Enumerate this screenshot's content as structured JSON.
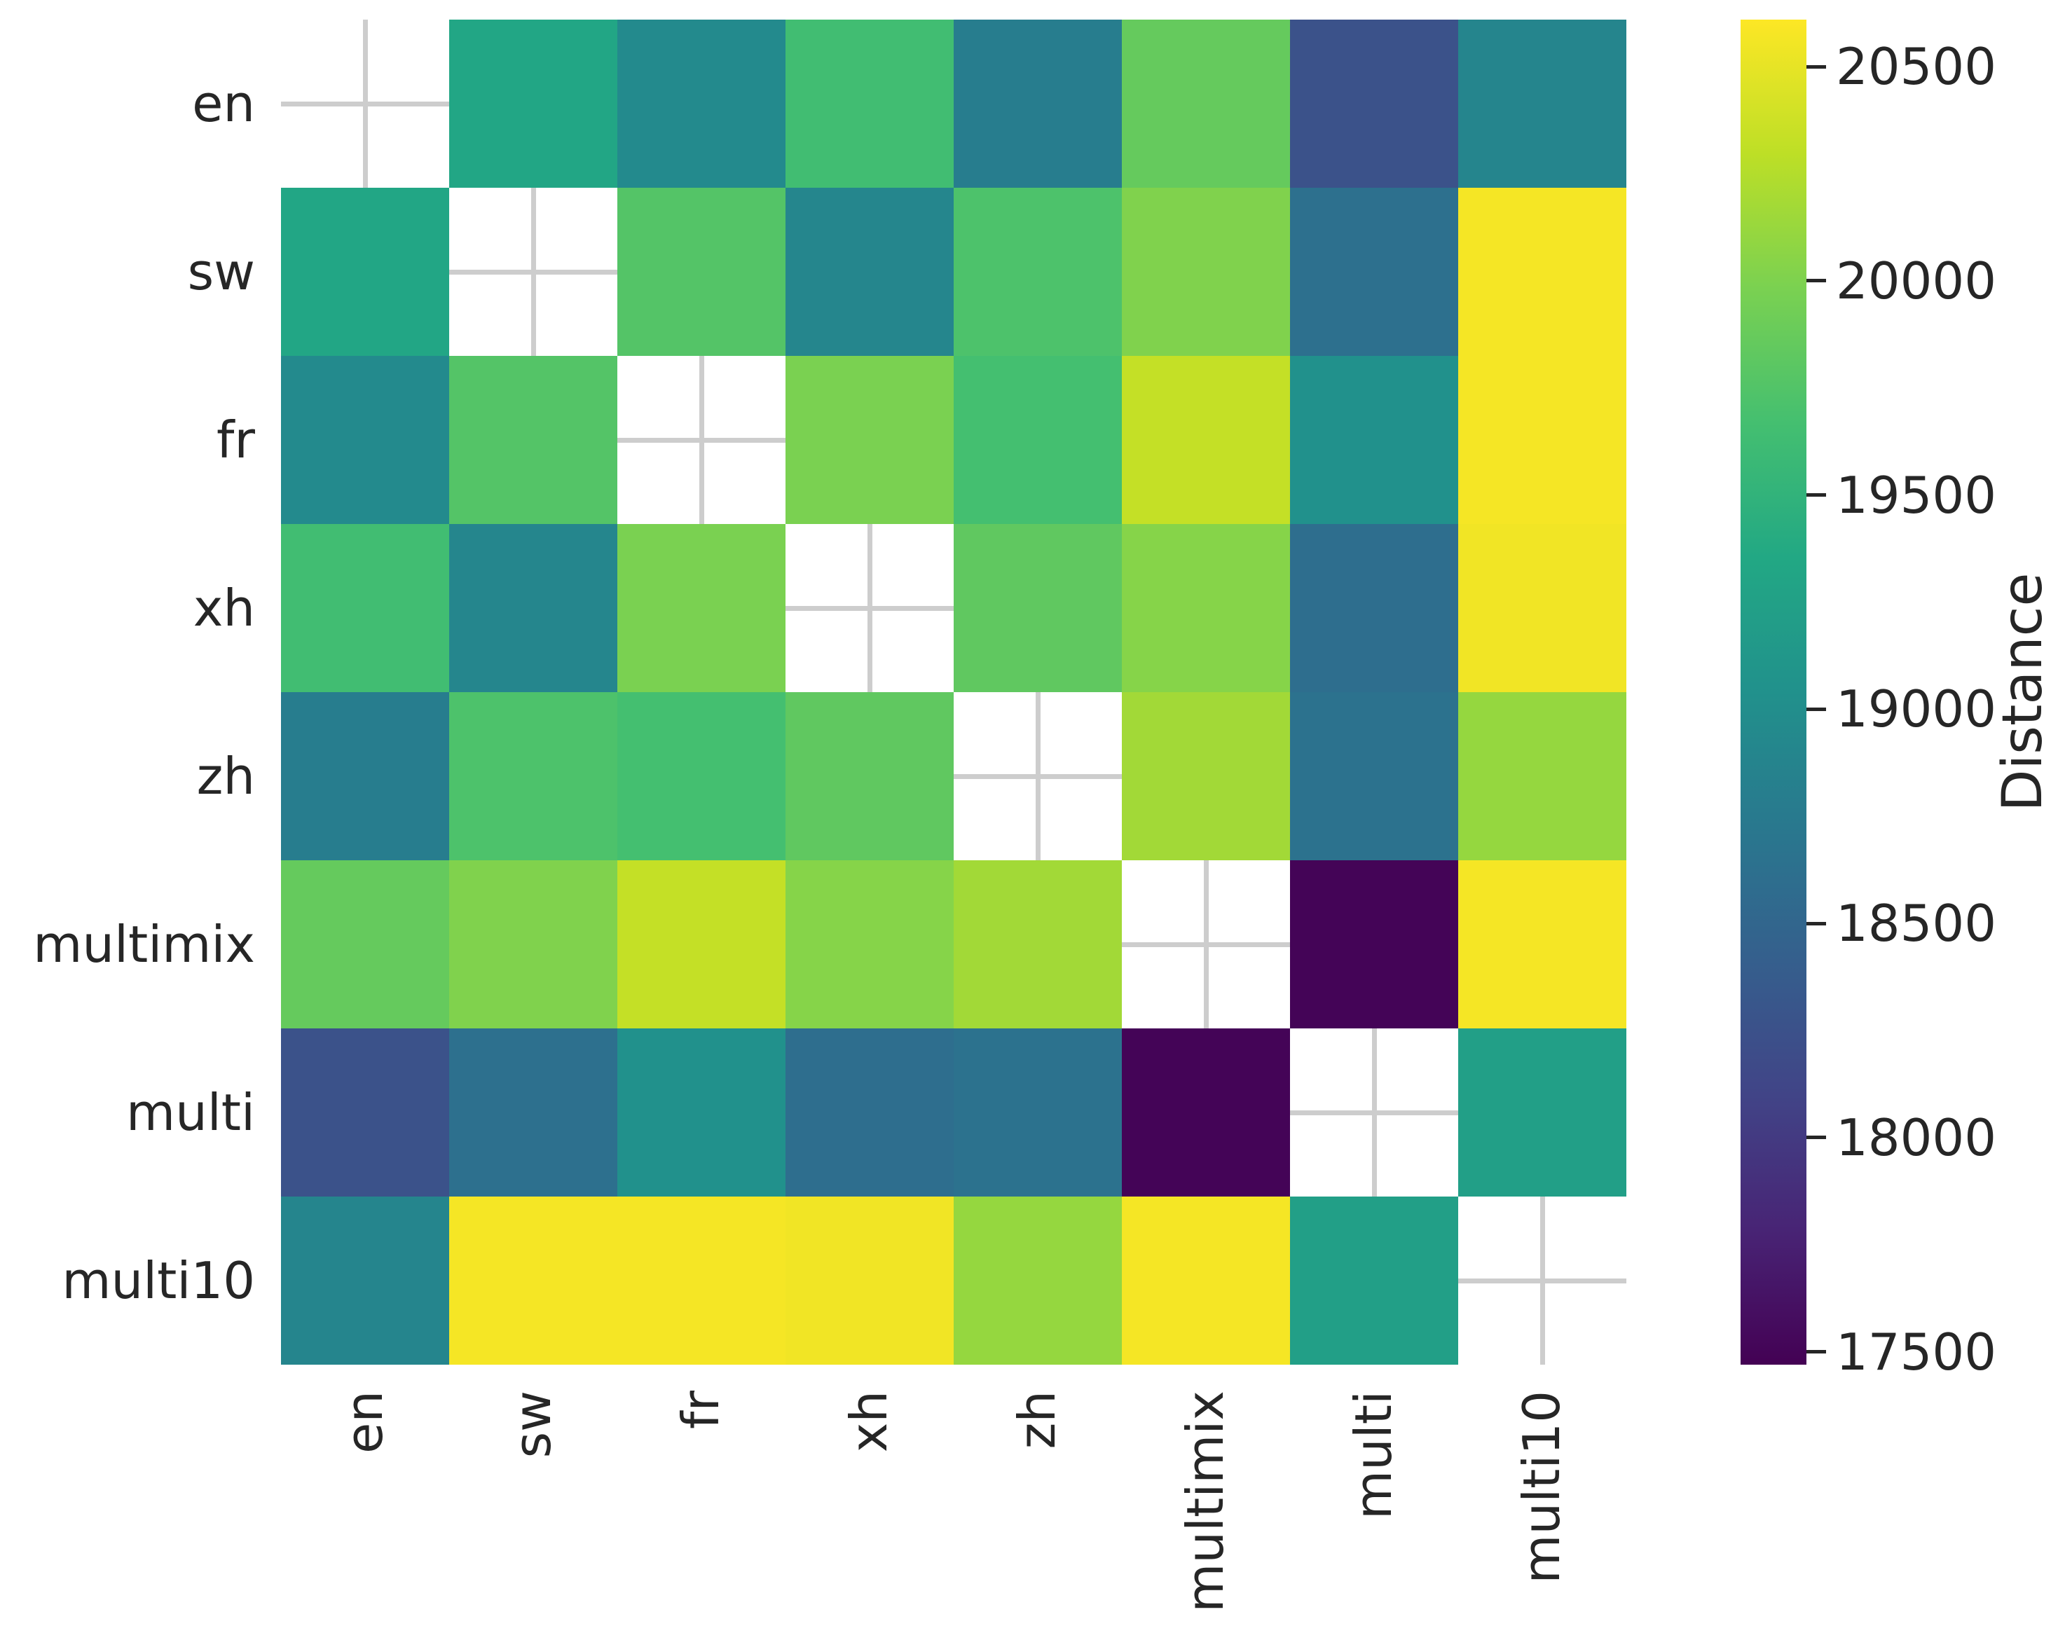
{
  "figure": {
    "background": "#ffffff",
    "text_color": "#262626",
    "masked_cell_color": "#ffffff",
    "gridline_color": "#cdcdcd"
  },
  "chart_data": {
    "type": "heatmap",
    "title": "",
    "xlabel": "",
    "ylabel": "",
    "categories": [
      "en",
      "sw",
      "fr",
      "xh",
      "zh",
      "multimix",
      "multi",
      "multi10"
    ],
    "matrix": [
      [
        null,
        19330,
        18950,
        19640,
        18790,
        19860,
        18260,
        18890
      ],
      [
        19330,
        null,
        19760,
        18900,
        19720,
        20010,
        18630,
        20570
      ],
      [
        18950,
        19760,
        null,
        19980,
        19670,
        20330,
        19040,
        20570
      ],
      [
        19640,
        18900,
        19980,
        null,
        19830,
        20040,
        18600,
        20550
      ],
      [
        18790,
        19720,
        19670,
        19830,
        null,
        20170,
        18650,
        20110
      ],
      [
        19860,
        20010,
        20330,
        20040,
        20170,
        null,
        17500,
        20570
      ],
      [
        18260,
        18630,
        19040,
        18600,
        18650,
        17500,
        null,
        19230
      ],
      [
        18890,
        20570,
        20570,
        20550,
        20110,
        20570,
        19230,
        null
      ]
    ],
    "diagonal": "masked",
    "colorbar": {
      "label": "Distance",
      "ticks": [
        20500,
        20000,
        19500,
        19000,
        18500,
        18000,
        17500
      ],
      "vmin": 17470,
      "vmax": 20610,
      "colormap": "viridis"
    },
    "colormap_stops": [
      {
        "t": 0.0,
        "color": "#440154"
      },
      {
        "t": 0.1,
        "color": "#482475"
      },
      {
        "t": 0.2,
        "color": "#414487"
      },
      {
        "t": 0.3,
        "color": "#355f8d"
      },
      {
        "t": 0.4,
        "color": "#29788e"
      },
      {
        "t": 0.5,
        "color": "#21918c"
      },
      {
        "t": 0.6,
        "color": "#22a884"
      },
      {
        "t": 0.7,
        "color": "#44bf70"
      },
      {
        "t": 0.8,
        "color": "#7ad151"
      },
      {
        "t": 0.9,
        "color": "#bddf26"
      },
      {
        "t": 1.0,
        "color": "#fde725"
      }
    ]
  }
}
